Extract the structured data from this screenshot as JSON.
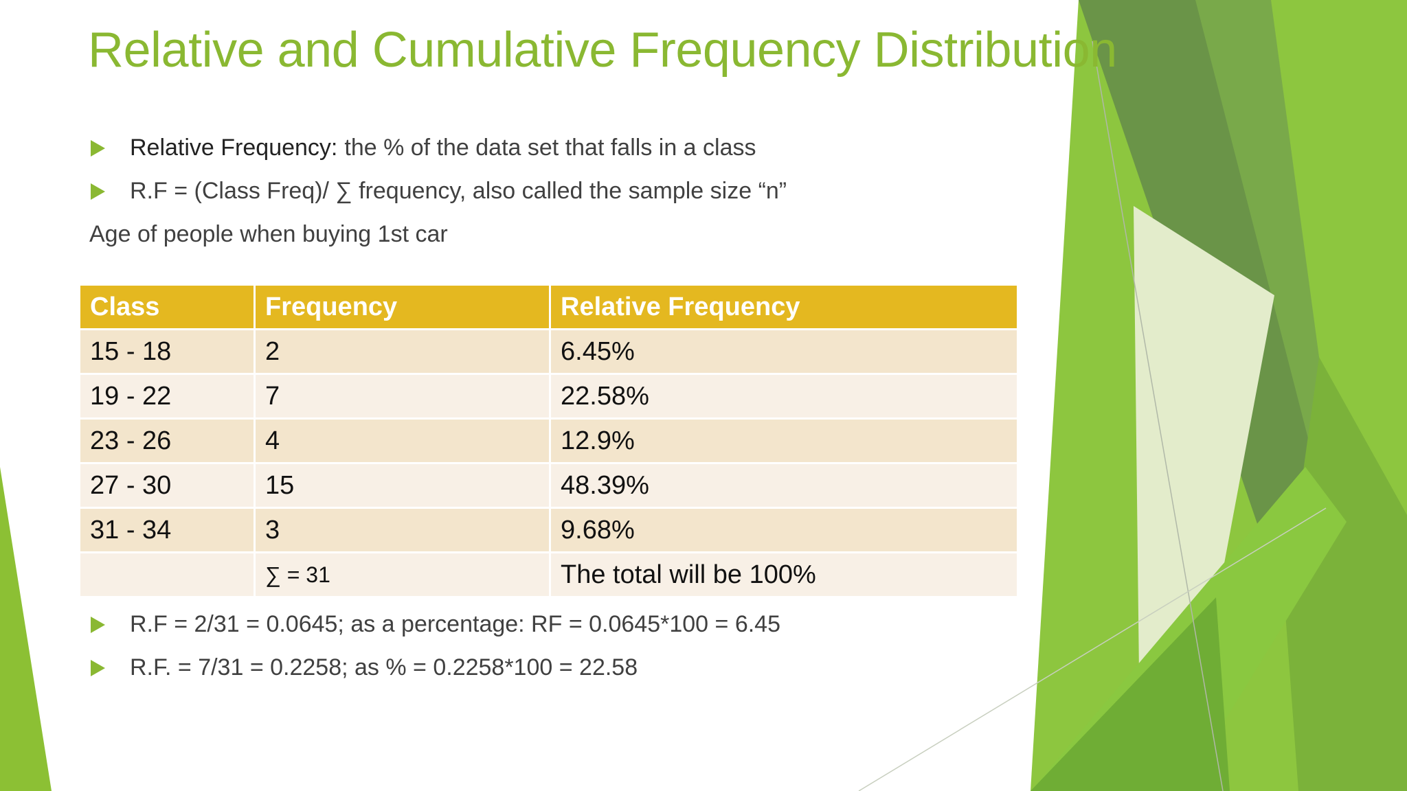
{
  "title": "Relative and Cumulative Frequency Distribution",
  "bullets_top": [
    {
      "lead": "Relative Frequency:",
      "text": "the % of the data set that falls in a class"
    },
    {
      "text": "R.F = (Class Freq)/ ∑ frequency, also called the sample size “n”"
    }
  ],
  "subtitle": "Age of people when buying 1st car",
  "table": {
    "headers": [
      "Class",
      "Frequency",
      "Relative Frequency"
    ],
    "rows": [
      [
        "15 - 18",
        "2",
        "6.45%"
      ],
      [
        "19 - 22",
        "7",
        "22.58%"
      ],
      [
        "23 - 26",
        "4",
        "12.9%"
      ],
      [
        "27 - 30",
        "15",
        "48.39%"
      ],
      [
        "31 - 34",
        "3",
        "9.68%"
      ],
      [
        "",
        "∑ = 31",
        "The total will be 100%"
      ]
    ]
  },
  "bullets_bottom": [
    {
      "text": "R.F = 2/31 = 0.0645; as a percentage: RF = 0.0645*100 = 6.45"
    },
    {
      "text": "R.F. = 7/31 = 0.2258; as % = 0.2258*100 = 22.58"
    }
  ],
  "colors": {
    "accent": "#8ab832",
    "header": "#e4b820",
    "row_odd": "#f3e5cc",
    "row_even": "#f8f0e6"
  }
}
